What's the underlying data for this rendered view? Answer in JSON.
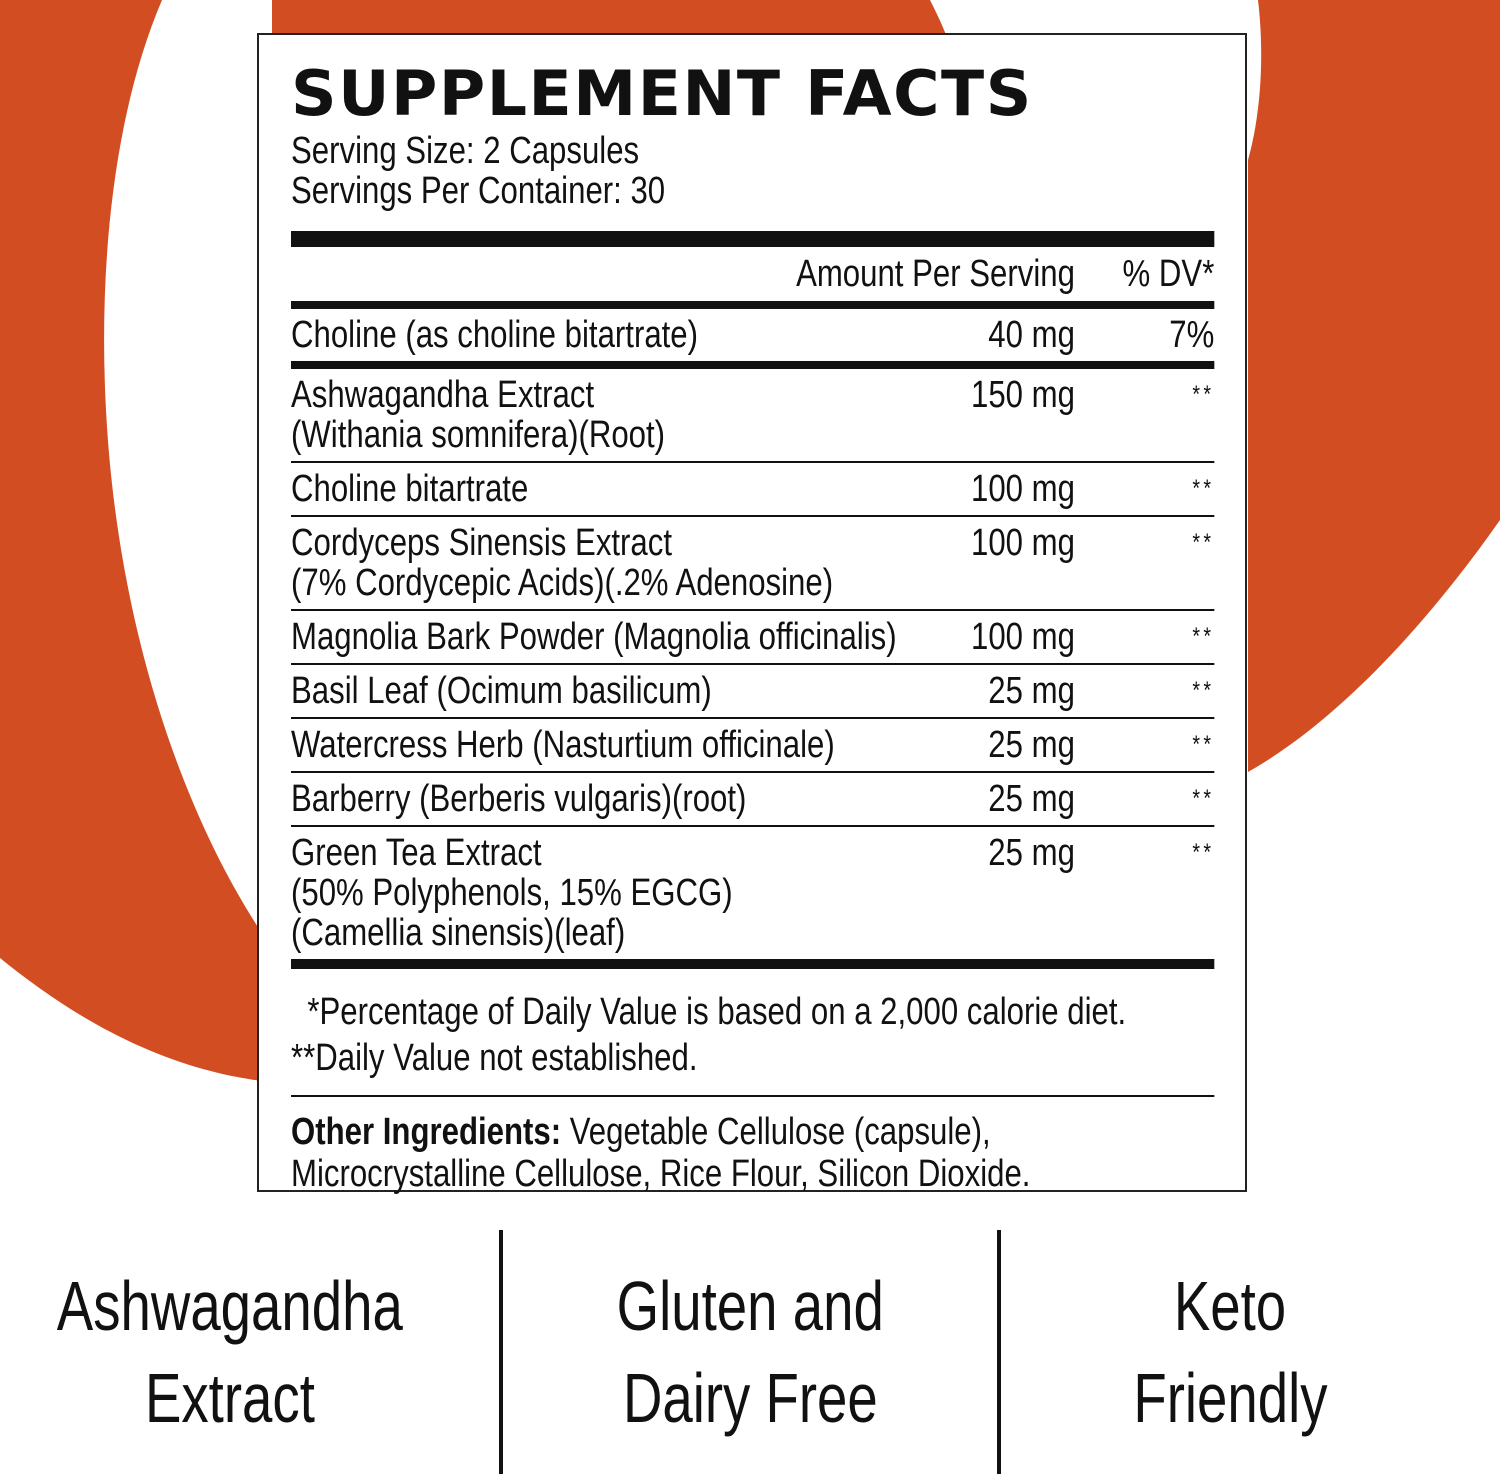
{
  "colors": {
    "accent": "#D24E22",
    "text": "#111111"
  },
  "label": {
    "title": "SUPPLEMENT FACTS",
    "serving_size": "Serving Size: 2 Capsules",
    "servings_per_container": "Servings Per Container: 30",
    "header": {
      "amount": "Amount Per Serving",
      "dv": "% DV*"
    },
    "rows": [
      {
        "name": [
          "Choline (as choline bitartrate)"
        ],
        "amount": "40 mg",
        "dv": "7%"
      },
      {
        "name": [
          "Ashwagandha Extract",
          "(Withania somnifera)(Root)"
        ],
        "amount": "150 mg",
        "dv": "**"
      },
      {
        "name": [
          "Choline bitartrate"
        ],
        "amount": "100 mg",
        "dv": "**"
      },
      {
        "name": [
          "Cordyceps Sinensis Extract",
          "(7% Cordycepic Acids)(.2% Adenosine)"
        ],
        "amount": "100 mg",
        "dv": "**"
      },
      {
        "name": [
          "Magnolia Bark Powder (Magnolia officinalis)"
        ],
        "amount": "100 mg",
        "dv": "**"
      },
      {
        "name": [
          "Basil Leaf (Ocimum basilicum)"
        ],
        "amount": "25 mg",
        "dv": "**"
      },
      {
        "name": [
          "Watercress Herb (Nasturtium officinale)"
        ],
        "amount": "25 mg",
        "dv": "**"
      },
      {
        "name": [
          "Barberry (Berberis vulgaris)(root)"
        ],
        "amount": "25 mg",
        "dv": "**"
      },
      {
        "name": [
          "Green Tea Extract",
          "(50% Polyphenols, 15% EGCG)",
          "(Camellia sinensis)(leaf)"
        ],
        "amount": "25 mg",
        "dv": "**"
      }
    ],
    "footnote_1": "*Percentage of Daily Value is based on a 2,000 calorie diet.",
    "footnote_2": "**Daily Value not established.",
    "other_label": "Other Ingredients:",
    "other_line_1": " Vegetable Cellulose (capsule),",
    "other_line_2": "Microcrystalline Cellulose, Rice Flour, Silicon Dioxide."
  },
  "badges": [
    {
      "line1": "Ashwagandha",
      "line2": "Extract"
    },
    {
      "line1": "Gluten and",
      "line2": "Dairy Free"
    },
    {
      "line1": "Keto",
      "line2": "Friendly"
    }
  ]
}
